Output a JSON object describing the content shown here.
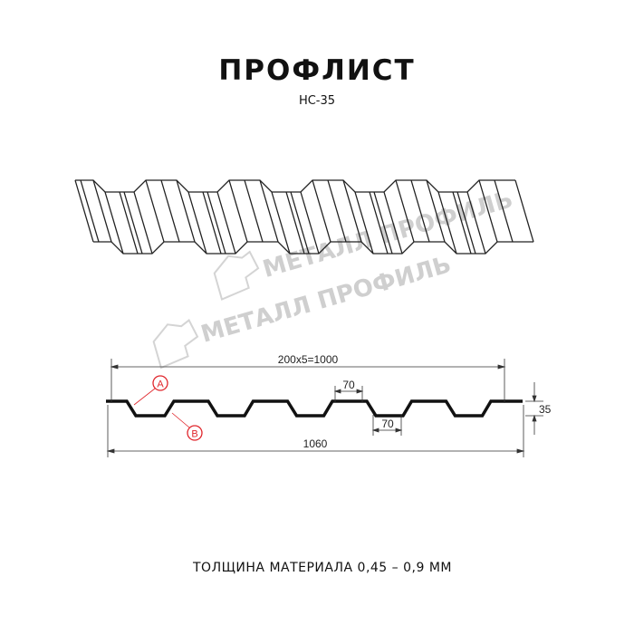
{
  "header": {
    "title": "ПРОФЛИСТ",
    "subtitle": "НС-35"
  },
  "watermark": {
    "text": "МЕТАЛЛ ПРОФИЛЬ",
    "color": "#cfcfcf"
  },
  "profile_drawing": {
    "dimensions": {
      "pitch_total": "200x5=1000",
      "full_width": "1060",
      "height": "35",
      "top_flange": "70",
      "bottom_flange": "70"
    },
    "callouts": {
      "a": "A",
      "b": "B",
      "color": "#e0252b"
    }
  },
  "footer": {
    "thickness": "ТОЛЩИНА МАТЕРИАЛА 0,45 – 0,9 ММ"
  }
}
